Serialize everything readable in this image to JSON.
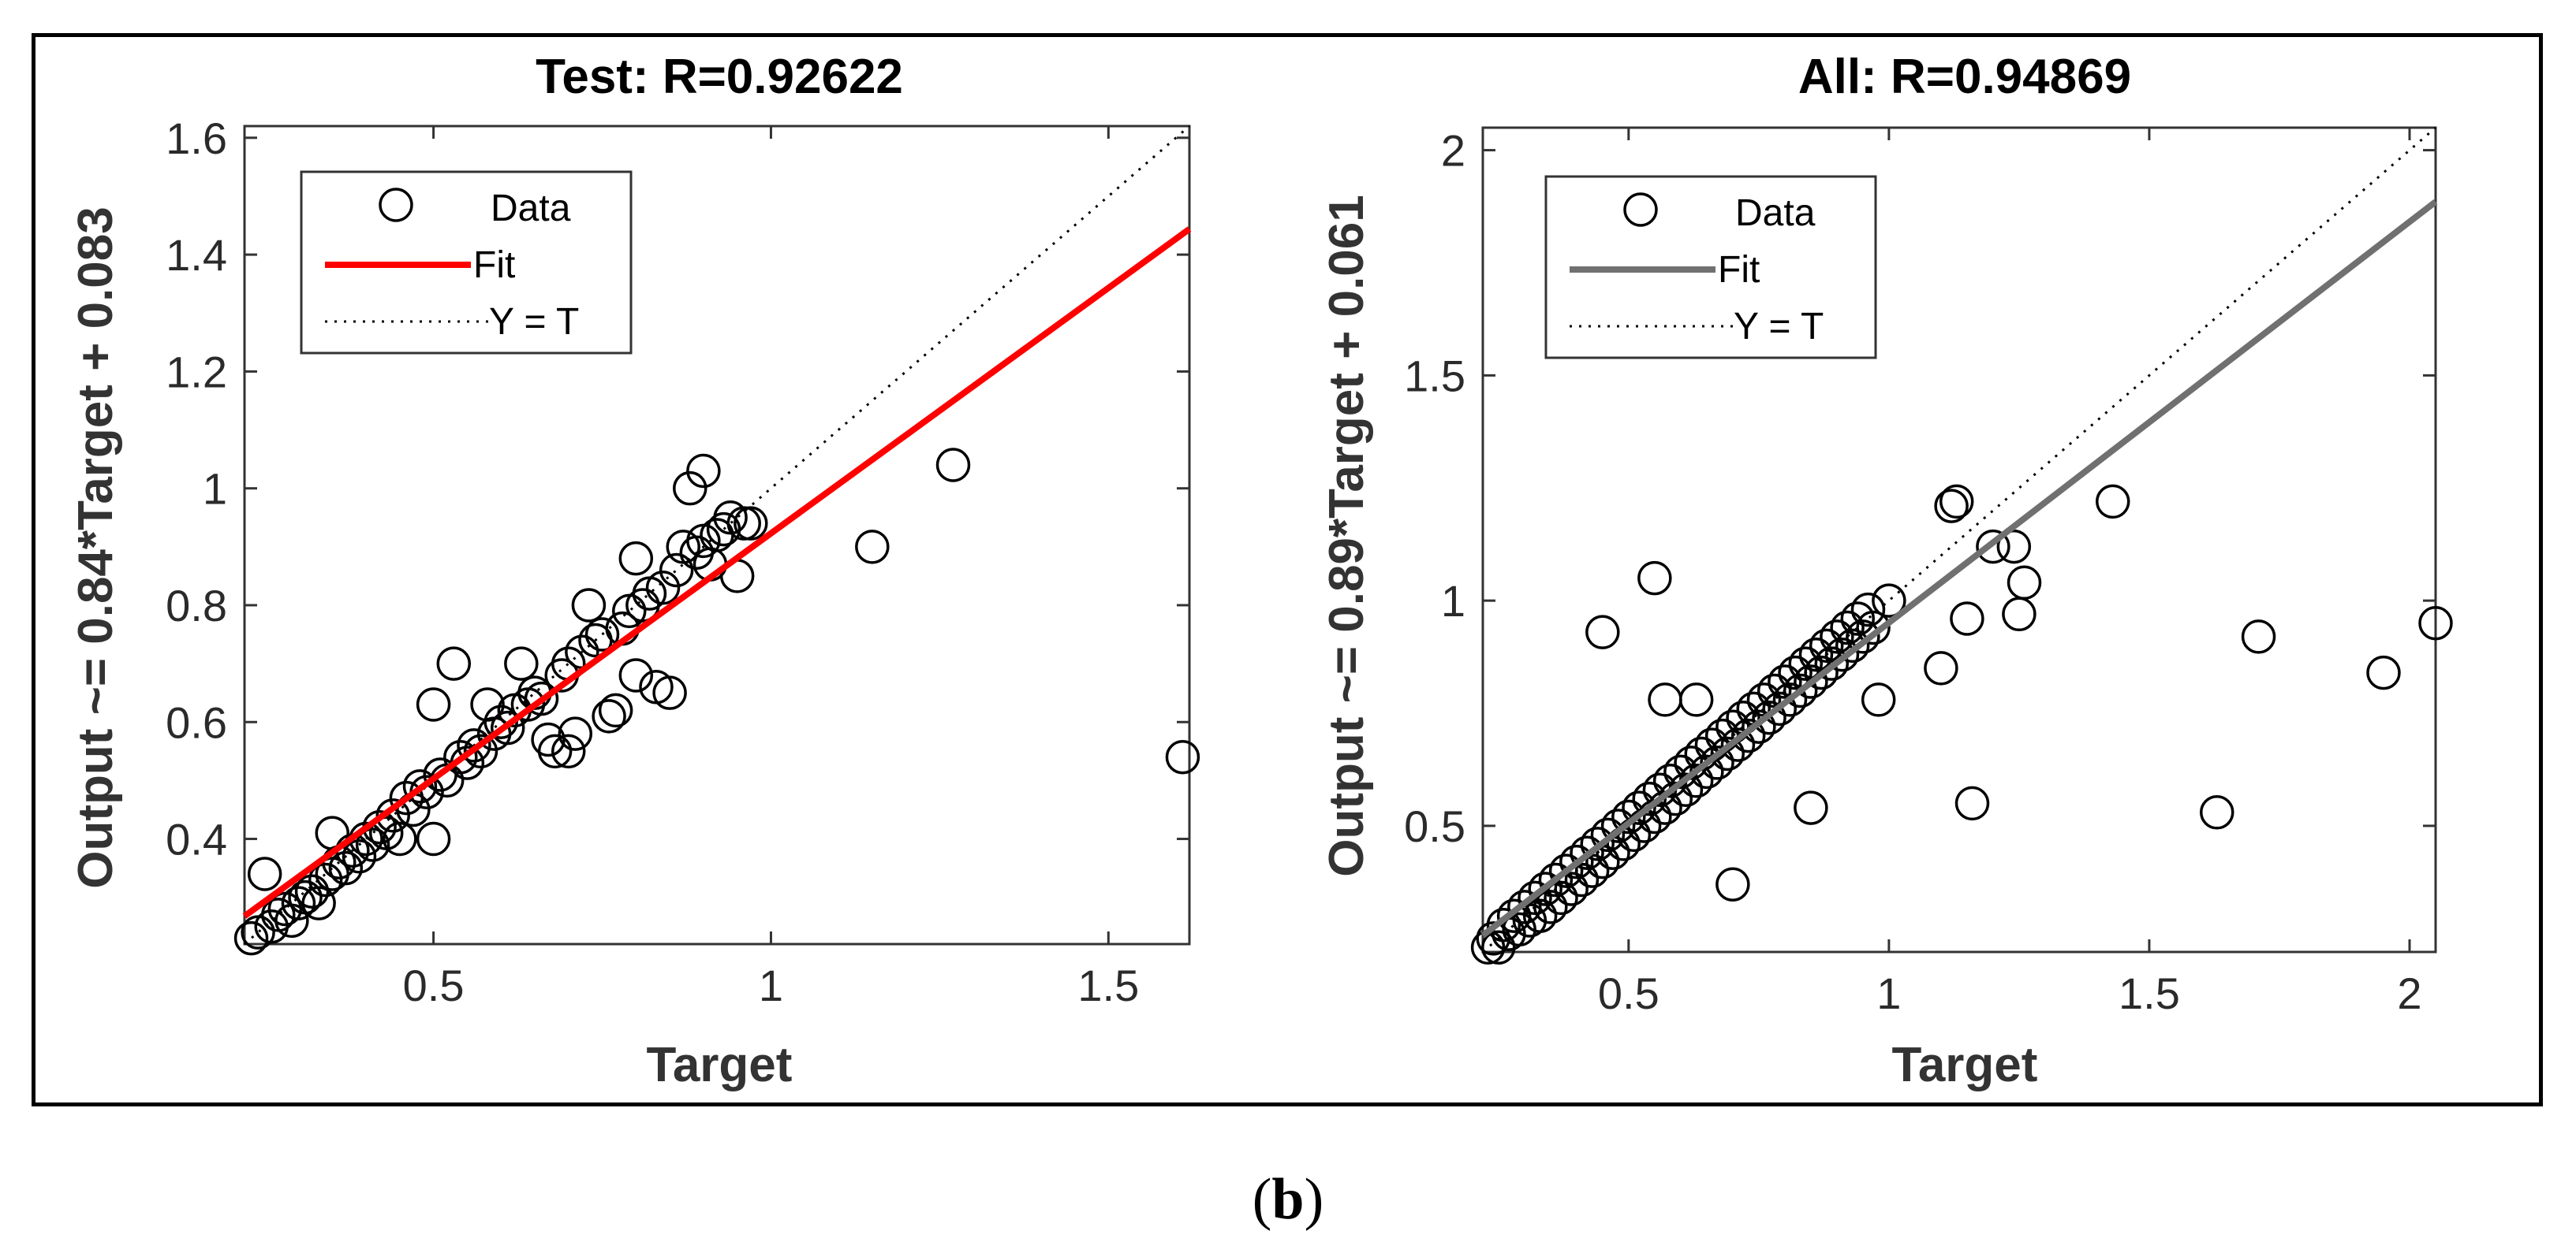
{
  "caption": {
    "open": "(",
    "label": "b",
    "close": ")"
  },
  "chart_data": [
    {
      "type": "scatter",
      "title": "Test: R=0.92622",
      "xlabel": "Target",
      "ylabel": "Output ~= 0.84*Target + 0.083",
      "xlim": [
        0.22,
        1.62
      ],
      "ylim": [
        0.22,
        1.62
      ],
      "xticks": [
        0.5,
        1,
        1.5
      ],
      "yticks": [
        0.4,
        0.6,
        0.8,
        1,
        1.2,
        1.4,
        1.6
      ],
      "xticklabels": [
        "0.5",
        "1",
        "1.5"
      ],
      "yticklabels": [
        "0.4",
        "0.6",
        "0.8",
        "1",
        "1.2",
        "1.4",
        "1.6"
      ],
      "fit": {
        "slope": 0.84,
        "intercept": 0.083,
        "color": "#ff0000"
      },
      "identity_line": true,
      "legend": {
        "position": "top-left",
        "entries": [
          "Data",
          "Fit",
          "Y = T"
        ]
      },
      "series": [
        {
          "name": "Data",
          "points": [
            [
              0.23,
              0.23
            ],
            [
              0.24,
              0.24
            ],
            [
              0.25,
              0.34
            ],
            [
              0.26,
              0.25
            ],
            [
              0.27,
              0.27
            ],
            [
              0.28,
              0.28
            ],
            [
              0.29,
              0.26
            ],
            [
              0.3,
              0.29
            ],
            [
              0.31,
              0.3
            ],
            [
              0.32,
              0.31
            ],
            [
              0.33,
              0.29
            ],
            [
              0.34,
              0.33
            ],
            [
              0.35,
              0.34
            ],
            [
              0.35,
              0.41
            ],
            [
              0.36,
              0.36
            ],
            [
              0.37,
              0.35
            ],
            [
              0.38,
              0.38
            ],
            [
              0.39,
              0.37
            ],
            [
              0.4,
              0.4
            ],
            [
              0.41,
              0.39
            ],
            [
              0.42,
              0.42
            ],
            [
              0.43,
              0.41
            ],
            [
              0.44,
              0.44
            ],
            [
              0.45,
              0.4
            ],
            [
              0.46,
              0.47
            ],
            [
              0.47,
              0.45
            ],
            [
              0.48,
              0.49
            ],
            [
              0.49,
              0.48
            ],
            [
              0.5,
              0.63
            ],
            [
              0.5,
              0.4
            ],
            [
              0.51,
              0.51
            ],
            [
              0.52,
              0.5
            ],
            [
              0.53,
              0.7
            ],
            [
              0.54,
              0.54
            ],
            [
              0.55,
              0.53
            ],
            [
              0.56,
              0.56
            ],
            [
              0.57,
              0.55
            ],
            [
              0.58,
              0.63
            ],
            [
              0.59,
              0.58
            ],
            [
              0.6,
              0.6
            ],
            [
              0.61,
              0.59
            ],
            [
              0.62,
              0.62
            ],
            [
              0.63,
              0.7
            ],
            [
              0.64,
              0.63
            ],
            [
              0.65,
              0.65
            ],
            [
              0.66,
              0.64
            ],
            [
              0.67,
              0.57
            ],
            [
              0.68,
              0.55
            ],
            [
              0.69,
              0.68
            ],
            [
              0.7,
              0.7
            ],
            [
              0.7,
              0.55
            ],
            [
              0.71,
              0.58
            ],
            [
              0.72,
              0.72
            ],
            [
              0.73,
              0.8
            ],
            [
              0.74,
              0.74
            ],
            [
              0.75,
              0.75
            ],
            [
              0.76,
              0.61
            ],
            [
              0.77,
              0.62
            ],
            [
              0.78,
              0.76
            ],
            [
              0.79,
              0.79
            ],
            [
              0.8,
              0.88
            ],
            [
              0.8,
              0.68
            ],
            [
              0.81,
              0.8
            ],
            [
              0.82,
              0.82
            ],
            [
              0.83,
              0.66
            ],
            [
              0.84,
              0.83
            ],
            [
              0.85,
              0.65
            ],
            [
              0.86,
              0.86
            ],
            [
              0.87,
              0.9
            ],
            [
              0.88,
              1.0
            ],
            [
              0.89,
              0.89
            ],
            [
              0.9,
              1.03
            ],
            [
              0.9,
              0.91
            ],
            [
              0.91,
              0.87
            ],
            [
              0.92,
              0.92
            ],
            [
              0.93,
              0.93
            ],
            [
              0.94,
              0.95
            ],
            [
              0.95,
              0.85
            ],
            [
              0.96,
              0.94
            ],
            [
              0.97,
              0.94
            ],
            [
              1.15,
              0.9
            ],
            [
              1.27,
              1.04
            ],
            [
              1.61,
              0.54
            ]
          ]
        }
      ]
    },
    {
      "type": "scatter",
      "title": "All: R=0.94869",
      "xlabel": "Target",
      "ylabel": "Output ~= 0.89*Target + 0.061",
      "xlim": [
        0.22,
        2.05
      ],
      "ylim": [
        0.22,
        2.05
      ],
      "xticks": [
        0.5,
        1,
        1.5,
        2
      ],
      "yticks": [
        0.5,
        1,
        1.5,
        2
      ],
      "xticklabels": [
        "0.5",
        "1",
        "1.5",
        "2"
      ],
      "yticklabels": [
        "0.5",
        "1",
        "1.5",
        "2"
      ],
      "fit": {
        "slope": 0.89,
        "intercept": 0.061,
        "color": "#707070"
      },
      "identity_line": true,
      "legend": {
        "position": "top-left",
        "entries": [
          "Data",
          "Fit",
          "Y = T"
        ]
      },
      "series": [
        {
          "name": "Data",
          "points": [
            [
              0.23,
              0.23
            ],
            [
              0.24,
              0.25
            ],
            [
              0.25,
              0.23
            ],
            [
              0.26,
              0.28
            ],
            [
              0.27,
              0.26
            ],
            [
              0.28,
              0.3
            ],
            [
              0.29,
              0.27
            ],
            [
              0.3,
              0.32
            ],
            [
              0.31,
              0.29
            ],
            [
              0.32,
              0.34
            ],
            [
              0.33,
              0.3
            ],
            [
              0.34,
              0.36
            ],
            [
              0.35,
              0.32
            ],
            [
              0.36,
              0.38
            ],
            [
              0.37,
              0.34
            ],
            [
              0.38,
              0.4
            ],
            [
              0.39,
              0.36
            ],
            [
              0.4,
              0.42
            ],
            [
              0.41,
              0.38
            ],
            [
              0.42,
              0.44
            ],
            [
              0.43,
              0.4
            ],
            [
              0.44,
              0.46
            ],
            [
              0.45,
              0.42
            ],
            [
              0.45,
              0.93
            ],
            [
              0.46,
              0.48
            ],
            [
              0.47,
              0.44
            ],
            [
              0.48,
              0.5
            ],
            [
              0.49,
              0.46
            ],
            [
              0.5,
              0.52
            ],
            [
              0.51,
              0.48
            ],
            [
              0.52,
              0.54
            ],
            [
              0.53,
              0.5
            ],
            [
              0.54,
              0.56
            ],
            [
              0.55,
              1.05
            ],
            [
              0.55,
              0.52
            ],
            [
              0.56,
              0.58
            ],
            [
              0.57,
              0.54
            ],
            [
              0.57,
              0.78
            ],
            [
              0.58,
              0.6
            ],
            [
              0.59,
              0.56
            ],
            [
              0.6,
              0.62
            ],
            [
              0.61,
              0.58
            ],
            [
              0.62,
              0.64
            ],
            [
              0.63,
              0.6
            ],
            [
              0.63,
              0.78
            ],
            [
              0.64,
              0.66
            ],
            [
              0.65,
              0.62
            ],
            [
              0.66,
              0.68
            ],
            [
              0.67,
              0.64
            ],
            [
              0.68,
              0.7
            ],
            [
              0.69,
              0.66
            ],
            [
              0.7,
              0.72
            ],
            [
              0.7,
              0.37
            ],
            [
              0.71,
              0.68
            ],
            [
              0.72,
              0.74
            ],
            [
              0.73,
              0.7
            ],
            [
              0.74,
              0.76
            ],
            [
              0.75,
              0.72
            ],
            [
              0.76,
              0.78
            ],
            [
              0.77,
              0.74
            ],
            [
              0.78,
              0.8
            ],
            [
              0.79,
              0.76
            ],
            [
              0.8,
              0.82
            ],
            [
              0.81,
              0.78
            ],
            [
              0.82,
              0.84
            ],
            [
              0.83,
              0.8
            ],
            [
              0.84,
              0.86
            ],
            [
              0.85,
              0.54
            ],
            [
              0.85,
              0.82
            ],
            [
              0.86,
              0.88
            ],
            [
              0.87,
              0.84
            ],
            [
              0.88,
              0.9
            ],
            [
              0.89,
              0.86
            ],
            [
              0.9,
              0.92
            ],
            [
              0.91,
              0.88
            ],
            [
              0.92,
              0.94
            ],
            [
              0.93,
              0.9
            ],
            [
              0.94,
              0.96
            ],
            [
              0.95,
              0.92
            ],
            [
              0.96,
              0.98
            ],
            [
              0.97,
              0.94
            ],
            [
              0.98,
              0.78
            ],
            [
              1.0,
              1.0
            ],
            [
              1.1,
              0.85
            ],
            [
              1.12,
              1.21
            ],
            [
              1.13,
              1.22
            ],
            [
              1.15,
              0.96
            ],
            [
              1.16,
              0.55
            ],
            [
              1.2,
              1.12
            ],
            [
              1.24,
              1.12
            ],
            [
              1.25,
              0.97
            ],
            [
              1.26,
              1.04
            ],
            [
              1.43,
              1.22
            ],
            [
              1.63,
              0.53
            ],
            [
              1.71,
              0.92
            ],
            [
              1.95,
              0.84
            ],
            [
              2.05,
              0.95
            ]
          ]
        }
      ]
    }
  ]
}
